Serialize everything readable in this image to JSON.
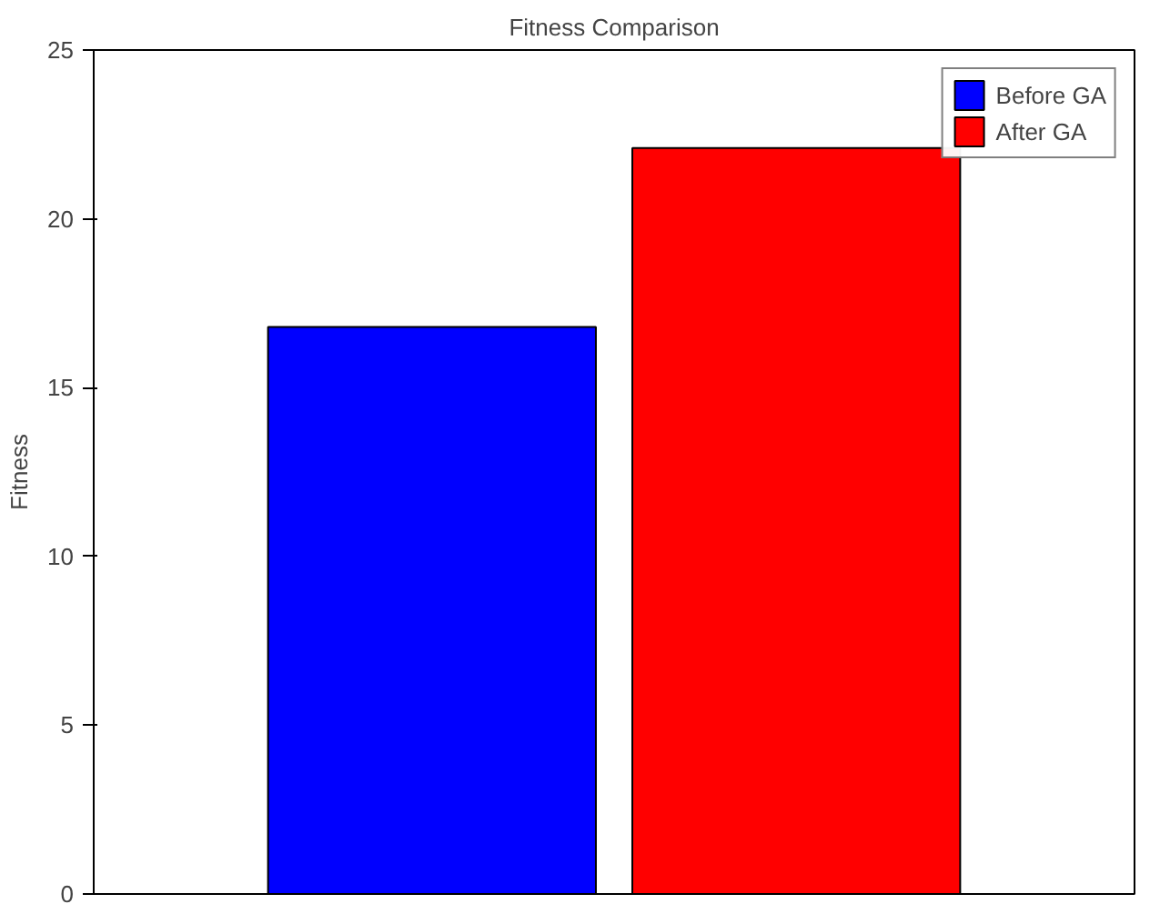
{
  "chart_data": {
    "type": "bar",
    "title": "Fitness Comparison",
    "ylabel": "Fitness",
    "categories": [
      null
    ],
    "series": [
      {
        "name": "Before GA",
        "color": "#0000ff",
        "values": [
          16.8
        ]
      },
      {
        "name": "After GA",
        "color": "#ff0000",
        "values": [
          22.1
        ]
      }
    ],
    "ylim": [
      0,
      25
    ],
    "yticks": [
      0,
      5,
      10,
      15,
      20,
      25
    ],
    "grid": false,
    "legend": "top right"
  }
}
